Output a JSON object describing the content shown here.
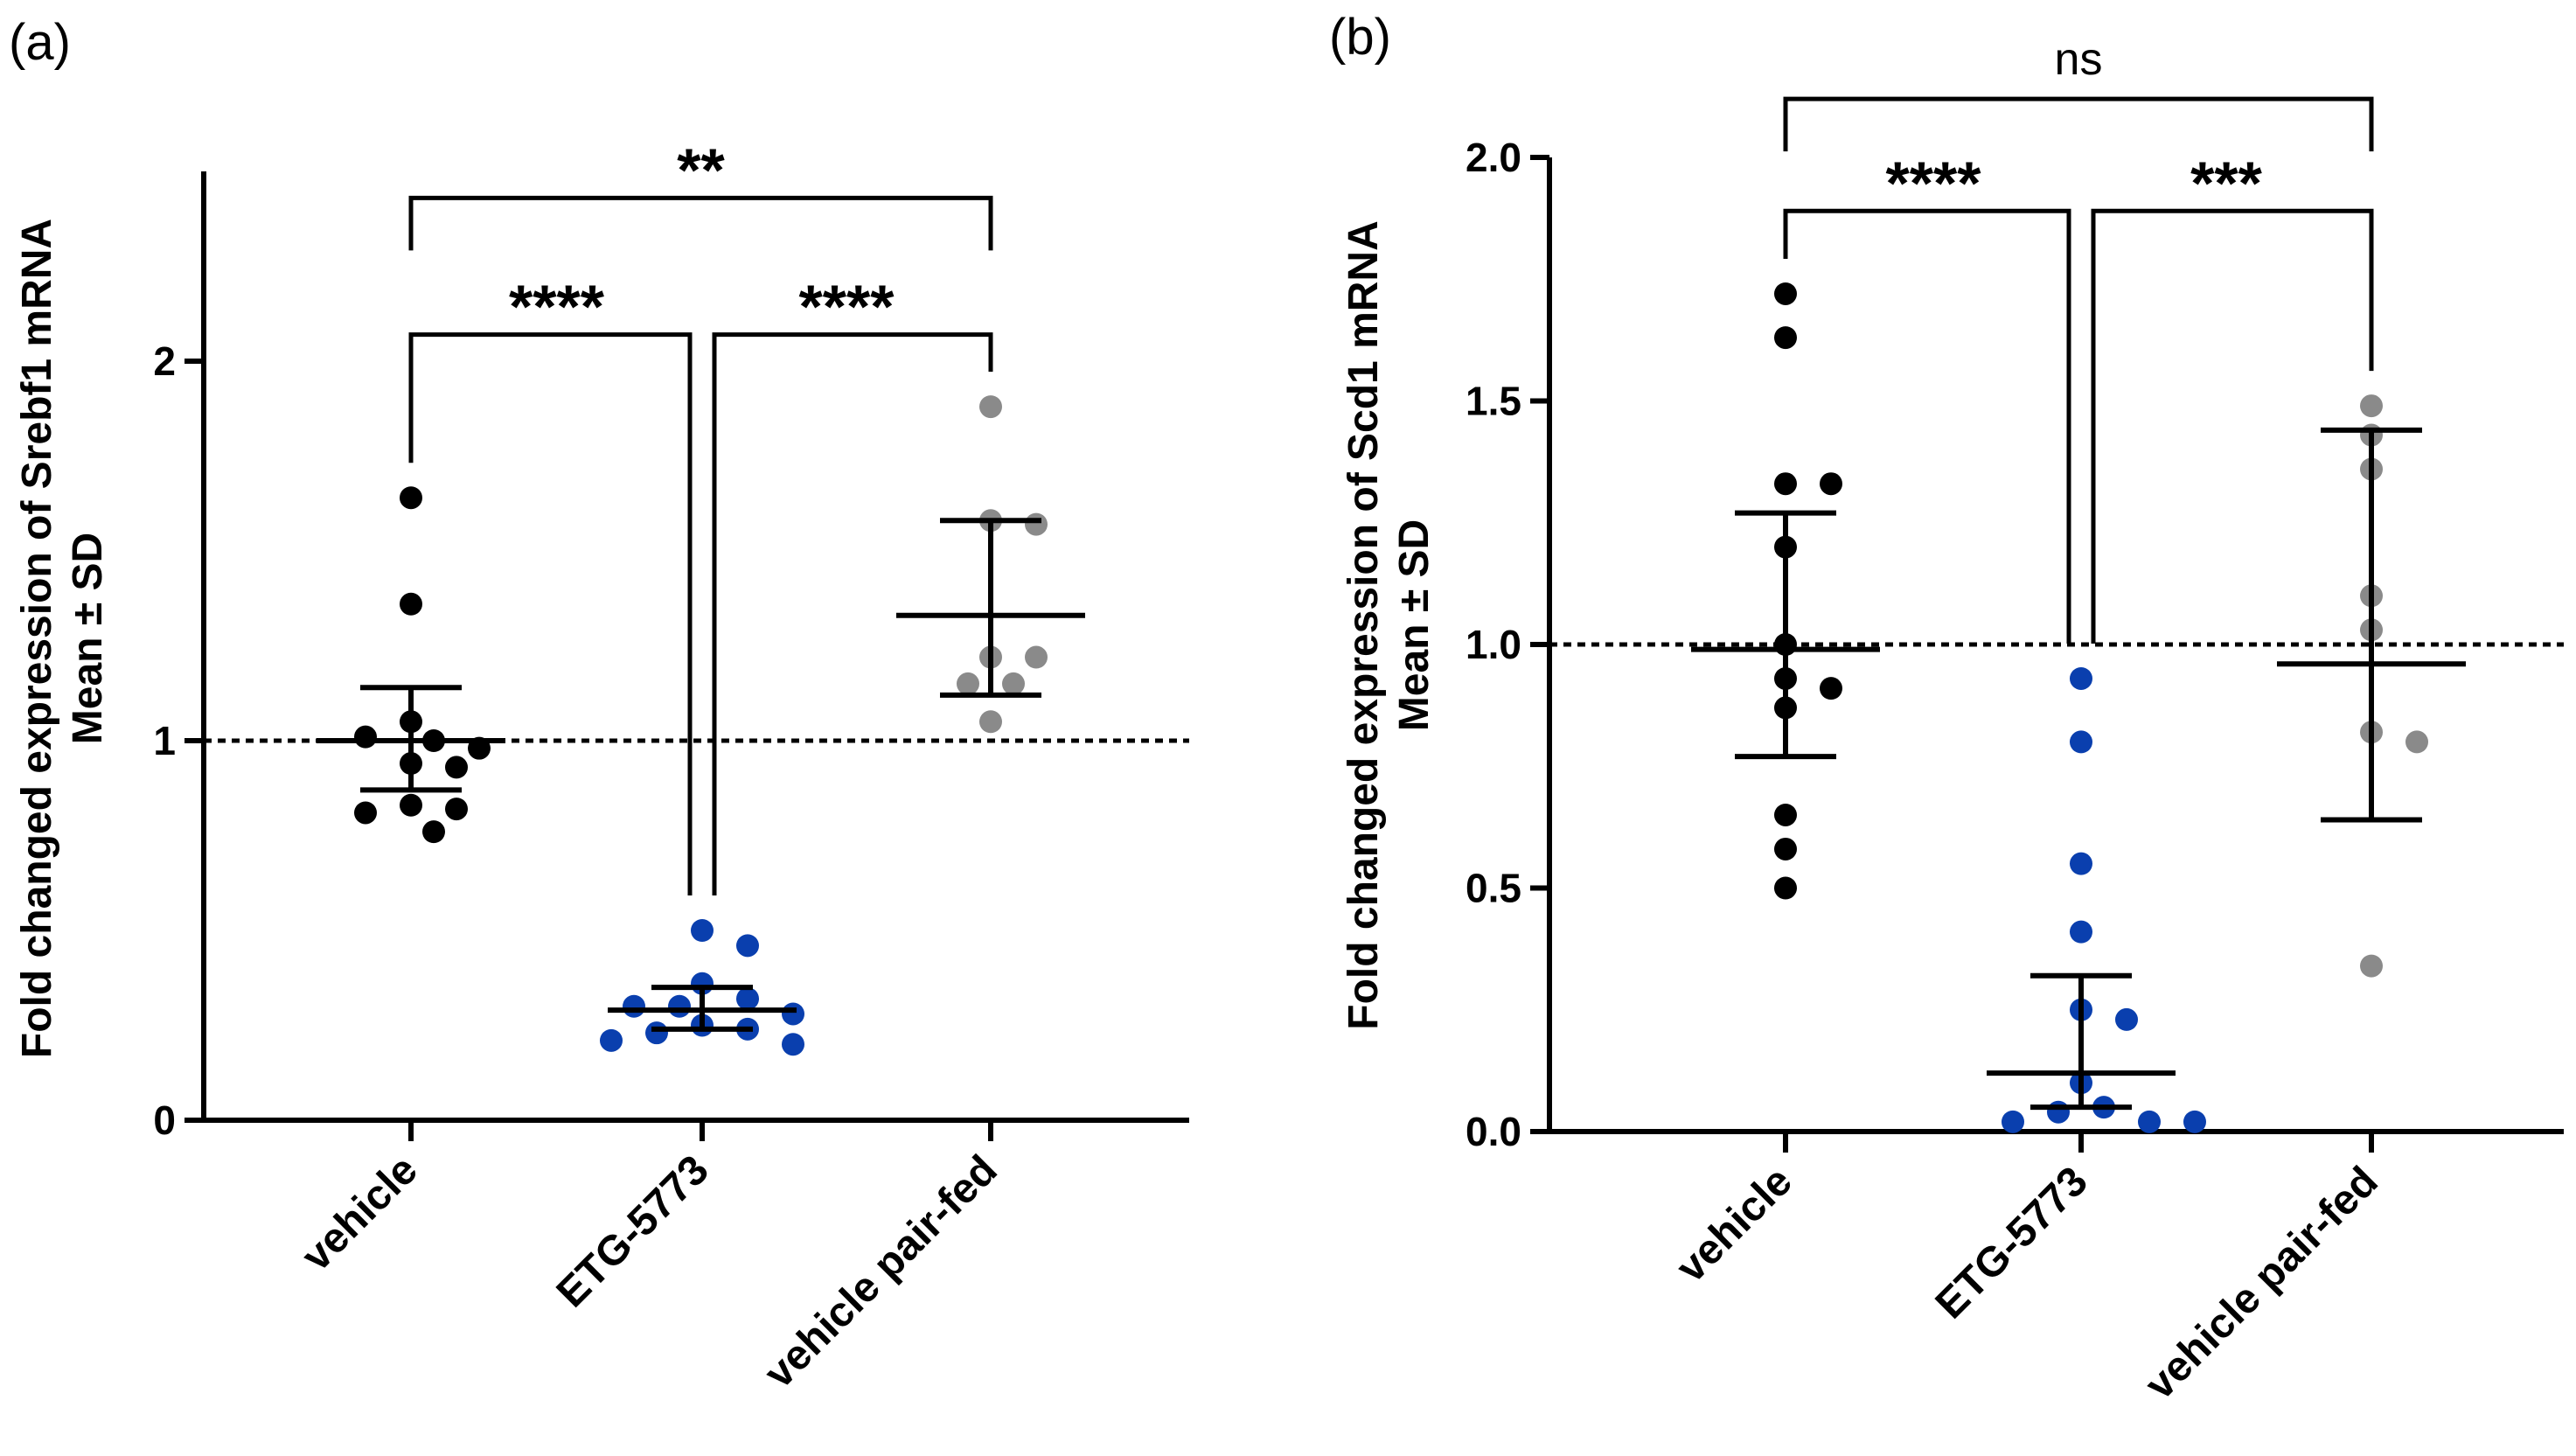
{
  "chart_data": [
    {
      "type": "scatter",
      "panel_label": "(a)",
      "ylabel": [
        "Fold changed expression of Srebf1 mRNA",
        "Mean ± SD"
      ],
      "categories": [
        "vehicle",
        "ETG-5773",
        "vehicle pair-fed"
      ],
      "ylim": [
        0,
        2.5
      ],
      "yticks": [
        0,
        1,
        2
      ],
      "ytick_labels": [
        "0",
        "1",
        "2"
      ],
      "reference_line": 1,
      "colors": [
        "#000000",
        "#0a3fae",
        "#8a8a8a"
      ],
      "groups": [
        {
          "name": "vehicle",
          "mean": 1.0,
          "sd_low": 0.87,
          "sd_high": 1.14,
          "points": [
            1.64,
            1.36,
            1.05,
            1.0,
            1.01,
            0.98,
            0.94,
            0.93,
            0.83,
            0.82,
            0.81,
            0.76
          ]
        },
        {
          "name": "ETG-5773",
          "mean": 0.29,
          "sd_low": 0.24,
          "sd_high": 0.35,
          "points": [
            0.5,
            0.46,
            0.36,
            0.32,
            0.3,
            0.3,
            0.28,
            0.25,
            0.24,
            0.23,
            0.21,
            0.2
          ]
        },
        {
          "name": "vehicle pair-fed",
          "mean": 1.33,
          "sd_low": 1.12,
          "sd_high": 1.58,
          "points": [
            1.88,
            1.58,
            1.57,
            1.22,
            1.22,
            1.15,
            1.15,
            1.05
          ]
        }
      ],
      "brackets": [
        {
          "from": 0,
          "to": 1,
          "label": "****",
          "level": 2.07
        },
        {
          "from": 1,
          "to": 2,
          "label": "****",
          "level": 2.07
        },
        {
          "from": 0,
          "to": 2,
          "label": "**",
          "level": 2.43
        }
      ]
    },
    {
      "type": "scatter",
      "panel_label": "(b)",
      "ylabel": [
        "Fold changed expression of Scd1 mRNA",
        "Mean ± SD"
      ],
      "categories": [
        "vehicle",
        "ETG-5773",
        "vehicle pair-fed"
      ],
      "ylim": [
        0,
        2.0
      ],
      "yticks": [
        0,
        0.5,
        1,
        1.5,
        2
      ],
      "ytick_labels": [
        "0.0",
        "0.5",
        "1.0",
        "1.5",
        "2.0"
      ],
      "reference_line": 1,
      "colors": [
        "#000000",
        "#0a3fae",
        "#8a8a8a"
      ],
      "groups": [
        {
          "name": "vehicle",
          "mean": 0.99,
          "sd_low": 0.77,
          "sd_high": 1.27,
          "points": [
            1.72,
            1.63,
            1.33,
            1.33,
            1.2,
            1.0,
            0.93,
            0.91,
            0.87,
            0.65,
            0.58,
            0.5
          ]
        },
        {
          "name": "ETG-5773",
          "mean": 0.12,
          "sd_low": 0.05,
          "sd_high": 0.32,
          "points": [
            0.93,
            0.8,
            0.55,
            0.41,
            0.25,
            0.23,
            0.1,
            0.05,
            0.04,
            0.02,
            0.02,
            0.02
          ]
        },
        {
          "name": "vehicle pair-fed",
          "mean": 0.96,
          "sd_low": 0.64,
          "sd_high": 1.44,
          "points": [
            1.49,
            1.43,
            1.36,
            1.1,
            1.03,
            0.82,
            0.8,
            0.34
          ]
        }
      ],
      "brackets": [
        {
          "from": 0,
          "to": 1,
          "label": "****",
          "level": 1.89
        },
        {
          "from": 1,
          "to": 2,
          "label": "***",
          "level": 1.89
        },
        {
          "from": 0,
          "to": 2,
          "label": "ns",
          "level": 2.12
        }
      ]
    }
  ]
}
